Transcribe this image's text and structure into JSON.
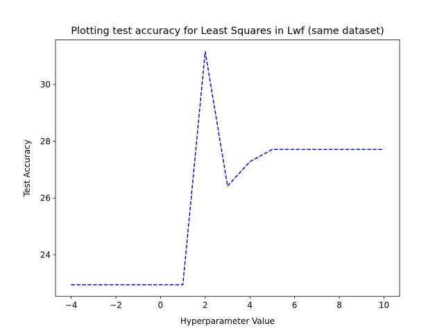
{
  "chart_data": {
    "type": "line",
    "title": "Plotting test accuracy for Least Squares in Lwf (same dataset)",
    "xlabel": "Hyperparameter Value",
    "ylabel": "Test Accuracy",
    "xlim": [
      -4.7,
      10.7
    ],
    "ylim": [
      22.53,
      31.57
    ],
    "xticks": [
      -4,
      -2,
      0,
      2,
      4,
      6,
      8,
      10
    ],
    "yticks": [
      24,
      26,
      28,
      30
    ],
    "grid": false,
    "series": [
      {
        "color": "#0000ff",
        "line_style": "dashed",
        "x": [
          -4,
          -3,
          -2,
          -1,
          0,
          1,
          2,
          3,
          4,
          5,
          6,
          7,
          8,
          9,
          10
        ],
        "y": [
          22.94,
          22.94,
          22.94,
          22.94,
          22.94,
          22.94,
          31.16,
          26.42,
          27.28,
          27.71,
          27.71,
          27.71,
          27.71,
          27.71,
          27.71
        ]
      }
    ]
  }
}
